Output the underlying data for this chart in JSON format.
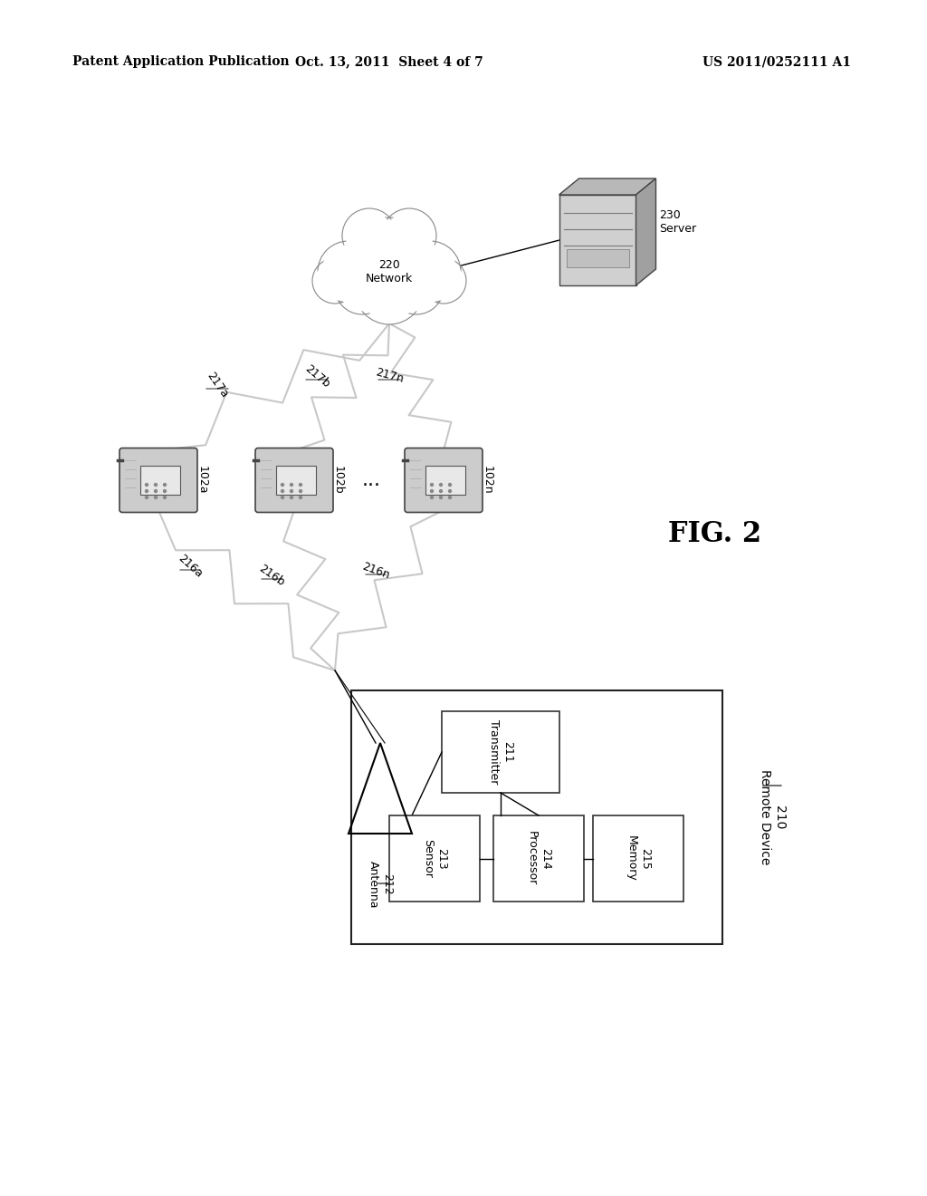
{
  "background_color": "#ffffff",
  "header_left": "Patent Application Publication",
  "header_center": "Oct. 13, 2011  Sheet 4 of 7",
  "header_right": "US 2011/0252111 A1",
  "fig_label": "FIG. 2",
  "network_label": "220\nNetwork",
  "server_label": "230\nServer",
  "remote_label": "210\nRemote Device",
  "antenna_label": "212\nAntenna",
  "transmitter_label": "211\nTransmitter",
  "sensor_label": "213\nSensor",
  "processor_label": "214\nProcessor",
  "memory_label": "215\nMemory",
  "wire_labels_up": [
    "217a",
    "217b",
    "217n"
  ],
  "wire_labels_down": [
    "216a",
    "216b",
    "216n"
  ],
  "device_labels": [
    "102a",
    "102b",
    "102n"
  ]
}
